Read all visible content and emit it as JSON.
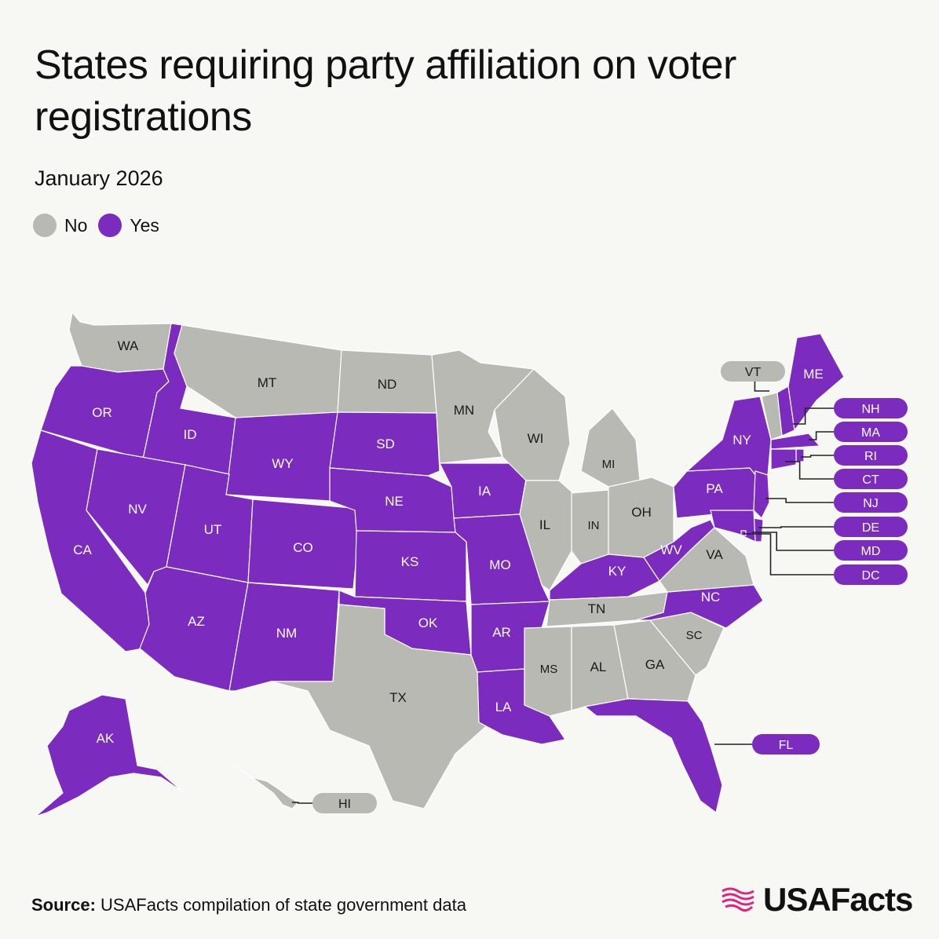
{
  "title": "States requiring party affiliation on voter registrations",
  "subtitle": "January 2026",
  "legend": [
    {
      "label": "No",
      "color": "#b9b9b3"
    },
    {
      "label": "Yes",
      "color": "#7b2cbf"
    }
  ],
  "colors": {
    "yes": "#7b2cbf",
    "no": "#b9b9b3",
    "background": "#f7f7f4"
  },
  "states": [
    {
      "abbr": "WA",
      "requires": "No"
    },
    {
      "abbr": "OR",
      "requires": "Yes"
    },
    {
      "abbr": "CA",
      "requires": "Yes"
    },
    {
      "abbr": "ID",
      "requires": "Yes"
    },
    {
      "abbr": "NV",
      "requires": "Yes"
    },
    {
      "abbr": "MT",
      "requires": "No"
    },
    {
      "abbr": "WY",
      "requires": "Yes"
    },
    {
      "abbr": "UT",
      "requires": "Yes"
    },
    {
      "abbr": "AZ",
      "requires": "Yes"
    },
    {
      "abbr": "CO",
      "requires": "Yes"
    },
    {
      "abbr": "NM",
      "requires": "Yes"
    },
    {
      "abbr": "ND",
      "requires": "No"
    },
    {
      "abbr": "SD",
      "requires": "Yes"
    },
    {
      "abbr": "NE",
      "requires": "Yes"
    },
    {
      "abbr": "KS",
      "requires": "Yes"
    },
    {
      "abbr": "OK",
      "requires": "Yes"
    },
    {
      "abbr": "TX",
      "requires": "No"
    },
    {
      "abbr": "MN",
      "requires": "No"
    },
    {
      "abbr": "IA",
      "requires": "Yes"
    },
    {
      "abbr": "MO",
      "requires": "Yes"
    },
    {
      "abbr": "AR",
      "requires": "Yes"
    },
    {
      "abbr": "LA",
      "requires": "Yes"
    },
    {
      "abbr": "WI",
      "requires": "No"
    },
    {
      "abbr": "IL",
      "requires": "No"
    },
    {
      "abbr": "MI",
      "requires": "No"
    },
    {
      "abbr": "IN",
      "requires": "No"
    },
    {
      "abbr": "OH",
      "requires": "No"
    },
    {
      "abbr": "KY",
      "requires": "Yes"
    },
    {
      "abbr": "TN",
      "requires": "No"
    },
    {
      "abbr": "MS",
      "requires": "No"
    },
    {
      "abbr": "AL",
      "requires": "No"
    },
    {
      "abbr": "GA",
      "requires": "No"
    },
    {
      "abbr": "FL",
      "requires": "Yes"
    },
    {
      "abbr": "SC",
      "requires": "No"
    },
    {
      "abbr": "NC",
      "requires": "Yes"
    },
    {
      "abbr": "VA",
      "requires": "No"
    },
    {
      "abbr": "WV",
      "requires": "Yes"
    },
    {
      "abbr": "PA",
      "requires": "Yes"
    },
    {
      "abbr": "NY",
      "requires": "Yes"
    },
    {
      "abbr": "VT",
      "requires": "No"
    },
    {
      "abbr": "NH",
      "requires": "Yes"
    },
    {
      "abbr": "ME",
      "requires": "Yes"
    },
    {
      "abbr": "MA",
      "requires": "Yes"
    },
    {
      "abbr": "RI",
      "requires": "Yes"
    },
    {
      "abbr": "CT",
      "requires": "Yes"
    },
    {
      "abbr": "NJ",
      "requires": "Yes"
    },
    {
      "abbr": "DE",
      "requires": "Yes"
    },
    {
      "abbr": "MD",
      "requires": "Yes"
    },
    {
      "abbr": "DC",
      "requires": "Yes"
    },
    {
      "abbr": "AK",
      "requires": "Yes"
    },
    {
      "abbr": "HI",
      "requires": "No"
    }
  ],
  "source": {
    "label": "Source:",
    "text": "USAFacts compilation of state government data"
  },
  "brand": {
    "name": "USAFacts",
    "icon": "usafacts-flag-logo"
  }
}
